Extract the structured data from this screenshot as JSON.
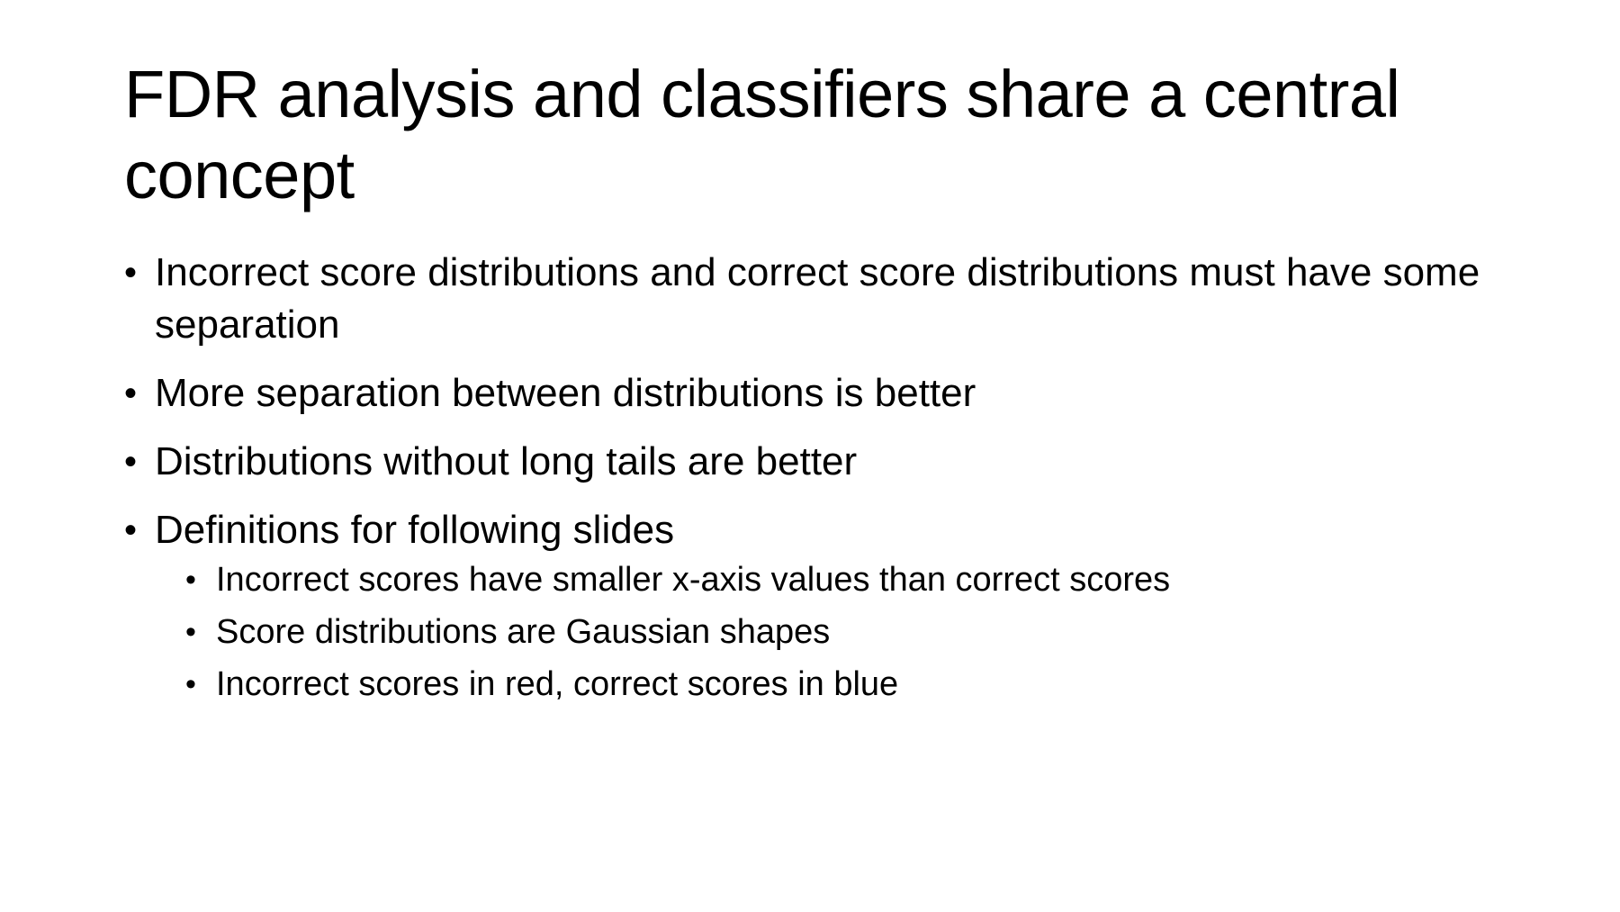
{
  "slide": {
    "title": "FDR analysis and classifiers share a central concept",
    "bullet_glyph": "•",
    "bullets": [
      {
        "text": "Incorrect score distributions and correct score distributions must have some separation"
      },
      {
        "text": "More separation between distributions is better"
      },
      {
        "text": "Distributions without long tails are better"
      },
      {
        "text": "Definitions for following slides",
        "sub_bullets": [
          {
            "text": "Incorrect scores have smaller x-axis values than correct scores"
          },
          {
            "text": "Score distributions are Gaussian shapes"
          },
          {
            "text": "Incorrect scores in red, correct scores in blue"
          }
        ]
      }
    ]
  }
}
